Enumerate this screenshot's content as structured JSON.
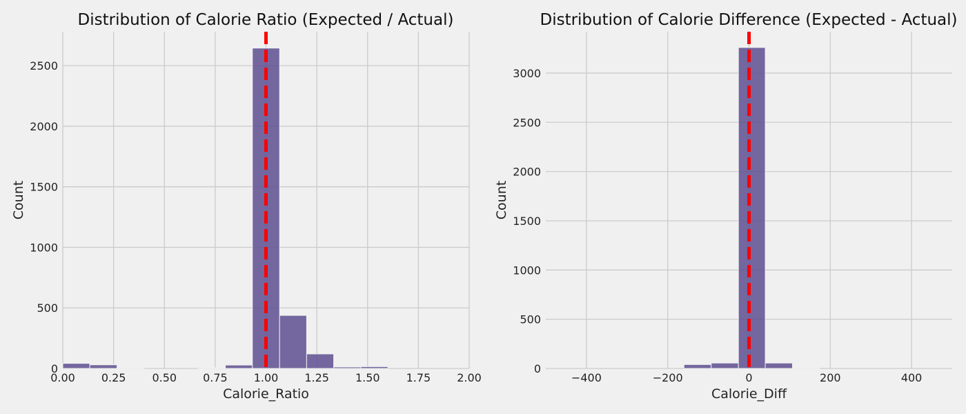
{
  "chart_data": [
    {
      "type": "bar",
      "subtype": "histogram",
      "title": "Distribution of Calorie Ratio (Expected / Actual)",
      "xlabel": "Calorie_Ratio",
      "ylabel": "Count",
      "xlim": [
        0,
        2
      ],
      "ylim": [
        0,
        2780
      ],
      "xticks": [
        0.0,
        0.25,
        0.5,
        0.75,
        1.0,
        1.25,
        1.5,
        1.75,
        2.0
      ],
      "xtick_labels": [
        "0.00",
        "0.25",
        "0.50",
        "0.75",
        "1.00",
        "1.25",
        "1.50",
        "1.75",
        "2.00"
      ],
      "yticks": [
        0,
        500,
        1000,
        1500,
        2000,
        2500
      ],
      "ytick_labels": [
        "0",
        "500",
        "1000",
        "1500",
        "2000",
        "2500"
      ],
      "grid": true,
      "bar_color": "#5e4f91",
      "reference_line": {
        "x": 1.0,
        "color": "#ff0000",
        "style": "dashed"
      },
      "bins": [
        {
          "x0": 0.0,
          "x1": 0.133,
          "count": 42
        },
        {
          "x0": 0.133,
          "x1": 0.267,
          "count": 30
        },
        {
          "x0": 0.267,
          "x1": 0.4,
          "count": 5
        },
        {
          "x0": 0.667,
          "x1": 0.8,
          "count": 5
        },
        {
          "x0": 0.8,
          "x1": 0.933,
          "count": 28
        },
        {
          "x0": 0.933,
          "x1": 1.067,
          "count": 2645
        },
        {
          "x0": 1.067,
          "x1": 1.2,
          "count": 438
        },
        {
          "x0": 1.2,
          "x1": 1.333,
          "count": 120
        },
        {
          "x0": 1.333,
          "x1": 1.467,
          "count": 12
        },
        {
          "x0": 1.467,
          "x1": 1.6,
          "count": 15
        }
      ]
    },
    {
      "type": "bar",
      "subtype": "histogram",
      "title": "Distribution of Calorie Difference (Expected - Actual)",
      "xlabel": "Calorie_Diff",
      "ylabel": "Count",
      "xlim": [
        -500,
        500
      ],
      "ylim": [
        0,
        3420
      ],
      "xticks": [
        -400,
        -200,
        0,
        200,
        400
      ],
      "xtick_labels": [
        "−400",
        "−200",
        "0",
        "200",
        "400"
      ],
      "yticks": [
        0,
        500,
        1000,
        1500,
        2000,
        2500,
        3000
      ],
      "ytick_labels": [
        "0",
        "500",
        "1000",
        "1500",
        "2000",
        "2500",
        "3000"
      ],
      "grid": true,
      "bar_color": "#5e4f91",
      "reference_line": {
        "x": 0,
        "color": "#ff0000",
        "style": "dashed"
      },
      "bins": [
        {
          "x0": -160,
          "x1": -93,
          "count": 40
        },
        {
          "x0": -93,
          "x1": -26,
          "count": 55
        },
        {
          "x0": -26,
          "x1": 40,
          "count": 3260
        },
        {
          "x0": 40,
          "x1": 107,
          "count": 55
        },
        {
          "x0": 107,
          "x1": 174,
          "count": 4
        }
      ]
    }
  ]
}
